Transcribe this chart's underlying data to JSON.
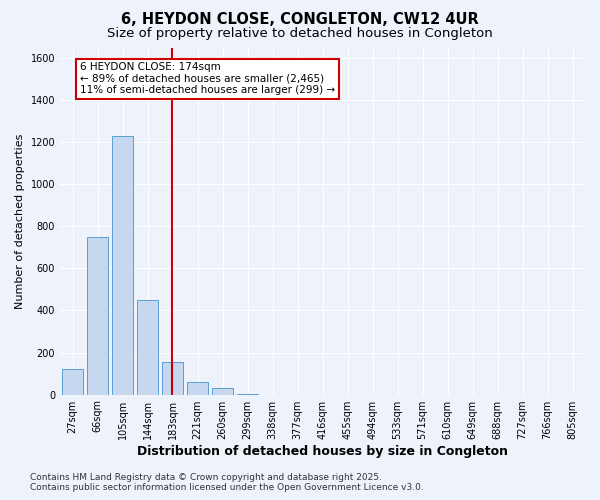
{
  "title": "6, HEYDON CLOSE, CONGLETON, CW12 4UR",
  "subtitle": "Size of property relative to detached houses in Congleton",
  "xlabel": "Distribution of detached houses by size in Congleton",
  "ylabel": "Number of detached properties",
  "categories": [
    "27sqm",
    "66sqm",
    "105sqm",
    "144sqm",
    "183sqm",
    "221sqm",
    "260sqm",
    "299sqm",
    "338sqm",
    "377sqm",
    "416sqm",
    "455sqm",
    "494sqm",
    "533sqm",
    "571sqm",
    "610sqm",
    "649sqm",
    "688sqm",
    "727sqm",
    "766sqm",
    "805sqm"
  ],
  "values": [
    120,
    750,
    1230,
    450,
    155,
    60,
    30,
    5,
    0,
    0,
    0,
    0,
    0,
    0,
    0,
    0,
    0,
    0,
    0,
    0,
    0
  ],
  "bar_color": "#c5d8ef",
  "bar_edge_color": "#5a9fd4",
  "red_line_index": 4,
  "red_line_color": "#cc0000",
  "ylim": [
    0,
    1650
  ],
  "yticks": [
    0,
    200,
    400,
    600,
    800,
    1000,
    1200,
    1400,
    1600
  ],
  "annotation_text": "6 HEYDON CLOSE: 174sqm\n← 89% of detached houses are smaller (2,465)\n11% of semi-detached houses are larger (299) →",
  "annotation_box_color": "#ffffff",
  "annotation_border_color": "#cc0000",
  "footnote": "Contains HM Land Registry data © Crown copyright and database right 2025.\nContains public sector information licensed under the Open Government Licence v3.0.",
  "background_color": "#eef2fb",
  "grid_color": "#ffffff",
  "title_fontsize": 10.5,
  "subtitle_fontsize": 9.5,
  "xlabel_fontsize": 9,
  "ylabel_fontsize": 8,
  "tick_fontsize": 7,
  "annotation_fontsize": 7.5,
  "footnote_fontsize": 6.5
}
